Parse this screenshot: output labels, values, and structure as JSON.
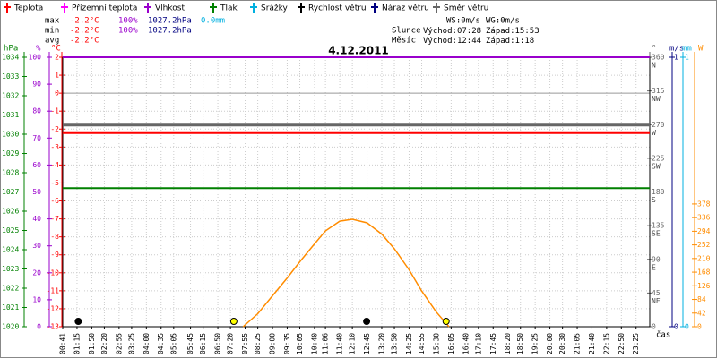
{
  "chart_data": {
    "type": "line",
    "title": "4.12.2011",
    "series": [
      {
        "name": "Teplota",
        "color": "#ff0000",
        "axis": "C",
        "values": [
          -2.2
        ]
      },
      {
        "name": "Přízemní teplota",
        "color": "#ff00ff",
        "axis": "C",
        "values": []
      },
      {
        "name": "Vlhkost",
        "color": "#9900cc",
        "axis": "pct",
        "values": [
          100
        ]
      },
      {
        "name": "Tlak",
        "color": "#008000",
        "axis": "hPa",
        "values": [
          1027.2
        ]
      },
      {
        "name": "Srážky",
        "color": "#00b0e0",
        "axis": "mm",
        "values": []
      },
      {
        "name": "Rychlost větru",
        "color": "#000000",
        "axis": "ms",
        "values": []
      },
      {
        "name": "Náraz větru",
        "color": "#000080",
        "axis": "ms",
        "values": []
      },
      {
        "name": "Směr větru",
        "color": "#666666",
        "axis": "dir",
        "values": [
          270
        ]
      }
    ],
    "solar": {
      "color": "#ff8c00",
      "axis": "W",
      "x": [
        "07:50",
        "08:25",
        "09:00",
        "09:35",
        "10:05",
        "10:40",
        "11:06",
        "11:40",
        "12:10",
        "12:45",
        "13:20",
        "13:50",
        "14:25",
        "14:55",
        "15:30",
        "16:00"
      ],
      "values": [
        0,
        40,
        95,
        150,
        200,
        255,
        295,
        325,
        331,
        320,
        285,
        240,
        175,
        110,
        45,
        0
      ]
    },
    "axes": {
      "hPa": {
        "label": "hPa",
        "color": "#008000",
        "ylim": [
          1020,
          1034
        ],
        "yticks": [
          1020,
          1021,
          1022,
          1023,
          1024,
          1025,
          1026,
          1027,
          1028,
          1029,
          1030,
          1031,
          1032,
          1033,
          1034
        ]
      },
      "pct": {
        "label": "%",
        "color": "#9900cc",
        "ylim": [
          0,
          100
        ],
        "yticks": [
          0,
          10,
          20,
          30,
          40,
          50,
          60,
          70,
          80,
          90,
          100
        ]
      },
      "C": {
        "label": "°C",
        "color": "#ff0000",
        "ylim": [
          -13,
          2
        ],
        "yticks": [
          -13,
          -12,
          -11,
          -10,
          -9,
          -8,
          -7,
          -6,
          -5,
          -4,
          -3,
          -2,
          -1,
          0,
          1,
          2
        ]
      },
      "dir": {
        "label": "°",
        "color": "#666666",
        "ylim": [
          0,
          360
        ],
        "yticks": [
          0,
          45,
          90,
          135,
          180,
          225,
          270,
          315,
          360
        ],
        "compass": [
          "NE",
          "E",
          "SE",
          "S",
          "SW",
          "W",
          "NW",
          "N"
        ]
      },
      "ms": {
        "label": "m/s",
        "color": "#000080",
        "ylim": [
          0,
          1
        ],
        "yticks": [
          0,
          1
        ]
      },
      "mm": {
        "label": "mm",
        "color": "#00b0e0",
        "ylim": [
          0,
          1
        ],
        "yticks": [
          0,
          1
        ]
      },
      "W": {
        "label": "W",
        "color": "#ff8c00",
        "ylim": [
          0,
          830
        ],
        "yticks": [
          0,
          42,
          84,
          126,
          168,
          210,
          252,
          294,
          336,
          378
        ]
      }
    },
    "xticks": [
      "00:41",
      "01:15",
      "01:50",
      "02:20",
      "02:55",
      "03:25",
      "04:00",
      "04:35",
      "05:05",
      "05:45",
      "06:15",
      "06:50",
      "07:20",
      "07:55",
      "08:25",
      "09:00",
      "09:35",
      "10:05",
      "10:40",
      "11:06",
      "11:40",
      "12:10",
      "12:45",
      "13:20",
      "13:50",
      "14:25",
      "14:55",
      "15:30",
      "16:05",
      "16:40",
      "17:10",
      "17:45",
      "18:20",
      "18:50",
      "19:25",
      "20:00",
      "20:30",
      "21:05",
      "21:40",
      "22:15",
      "22:50",
      "23:25"
    ],
    "x_label": "čas",
    "stats": {
      "max": [
        "max",
        "-2.2°C",
        "100%",
        "1027.2hPa",
        "0.0mm"
      ],
      "min": [
        "min",
        "-2.2°C",
        "100%",
        "1027.2hPa"
      ],
      "avg": [
        "avg",
        "-2.2°C"
      ]
    },
    "wind": [
      "WS:0m/s",
      "WG:0m/s"
    ],
    "sun": {
      "label": "Slunce",
      "rise_label": "Východ:",
      "rise": "07:28",
      "set_label": "Západ:",
      "set": "15:53",
      "color": "#ffff00"
    },
    "moon": {
      "label": "Měsíc",
      "rise_label": "Východ:",
      "rise": "12:44",
      "set_label": "Západ:",
      "set": "1:18",
      "color": "#000000"
    }
  }
}
